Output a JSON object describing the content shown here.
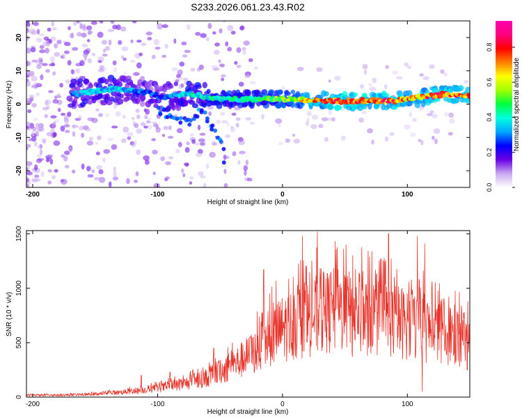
{
  "title": "S233.2026.061.23.43.R02",
  "chart_data": [
    {
      "type": "heatmap",
      "title": "S233.2026.061.23.43.R02",
      "xlabel": "Height of straight line (km)",
      "ylabel": "Frequency (Hz)",
      "xlim": [
        -205,
        150
      ],
      "ylim": [
        -25,
        25
      ],
      "x_ticks": [
        -200,
        -100,
        0,
        100
      ],
      "y_ticks": [
        -20,
        -10,
        0,
        10,
        20
      ],
      "x_tick_labels": [
        "-200",
        "-100",
        "0",
        "100"
      ],
      "y_tick_labels": [
        "-20",
        "-10",
        "0",
        "10",
        "20"
      ],
      "ridge_x": [
        -165,
        -150,
        -135,
        -120,
        -105,
        -95,
        -80,
        -70,
        -60,
        -50,
        -40,
        -30,
        -20,
        -10,
        0,
        10,
        20,
        30,
        40,
        50,
        60,
        70,
        80,
        90,
        100,
        110,
        120,
        130,
        140,
        150
      ],
      "ridge_frequency_hz": [
        3,
        4,
        4.5,
        4,
        3.5,
        2,
        3,
        3,
        2,
        1.5,
        1.5,
        1.5,
        1.5,
        1.5,
        1.5,
        1.5,
        1,
        1,
        1,
        1,
        1,
        1,
        1,
        1,
        1.5,
        2,
        2.5,
        3,
        3,
        2.5
      ],
      "ridge_amplitude": [
        0.35,
        0.4,
        0.4,
        0.35,
        0.3,
        0.28,
        0.4,
        0.45,
        0.45,
        0.45,
        0.5,
        0.5,
        0.5,
        0.55,
        0.6,
        0.65,
        0.75,
        0.8,
        0.9,
        0.85,
        0.9,
        0.85,
        0.9,
        0.85,
        0.8,
        0.75,
        0.85,
        0.85,
        0.8,
        0.8
      ],
      "branch_x": [
        -100,
        -90,
        -80,
        -75,
        -70,
        -60,
        -50,
        -45
      ],
      "branch_frequency_hz": [
        -2,
        -3,
        -5,
        -6,
        -2,
        -4,
        -10,
        -18
      ],
      "colorbar": {
        "label": "Normalized spectral amplitude",
        "range": [
          0,
          0.95
        ],
        "ticks": [
          "0.0",
          "0.2",
          "0.4",
          "0.6",
          "0.8"
        ],
        "tick_values": [
          0,
          0.2,
          0.4,
          0.6,
          0.8
        ],
        "colors": [
          "#ffffff",
          "#c8a8f0",
          "#6a00e6",
          "#0000ff",
          "#00a8ff",
          "#00ffe0",
          "#00ff40",
          "#a0ff00",
          "#ffff00",
          "#ff8000",
          "#ff0000",
          "#ff0080",
          "#ff00b0"
        ]
      }
    },
    {
      "type": "line",
      "xlabel": "Height of straight line (km)",
      "ylabel": "SNR (10 * v/v)",
      "xlim": [
        -205,
        150
      ],
      "ylim": [
        0,
        1530
      ],
      "x_ticks": [
        -200,
        -100,
        0,
        100
      ],
      "y_ticks": [
        0,
        500,
        1000,
        1500
      ],
      "x_tick_labels": [
        "-200",
        "-100",
        "0",
        "100"
      ],
      "y_tick_labels": [
        "0",
        "500",
        "1000",
        "1500"
      ],
      "line_color": "#e8352b",
      "envelope_x": [
        -205,
        -180,
        -160,
        -140,
        -120,
        -100,
        -80,
        -60,
        -40,
        -20,
        -10,
        0,
        10,
        20,
        30,
        40,
        50,
        60,
        70,
        80,
        90,
        100,
        110,
        120,
        130,
        140,
        150
      ],
      "envelope_snr": [
        20,
        20,
        25,
        40,
        60,
        90,
        130,
        200,
        320,
        480,
        600,
        700,
        750,
        800,
        850,
        880,
        880,
        850,
        820,
        800,
        780,
        750,
        720,
        680,
        650,
        620,
        600
      ],
      "peaks": [
        {
          "x": 28,
          "snr": 1520
        },
        {
          "x": 16,
          "snr": 1480
        },
        {
          "x": 85,
          "snr": 1500
        },
        {
          "x": 108,
          "snr": 1480
        },
        {
          "x": 51,
          "snr": 1400
        },
        {
          "x": 114,
          "snr": 1410
        },
        {
          "x": -15,
          "snr": 1170
        },
        {
          "x": -5,
          "snr": 1070
        },
        {
          "x": -40,
          "snr": 500
        },
        {
          "x": -55,
          "snr": 450
        },
        {
          "x": -90,
          "snr": 230
        },
        {
          "x": -113,
          "snr": 200
        }
      ],
      "dips": [
        {
          "x": 112,
          "snr": 50
        },
        {
          "x": 56,
          "snr": 370
        },
        {
          "x": 148,
          "snr": 250
        }
      ]
    }
  ]
}
